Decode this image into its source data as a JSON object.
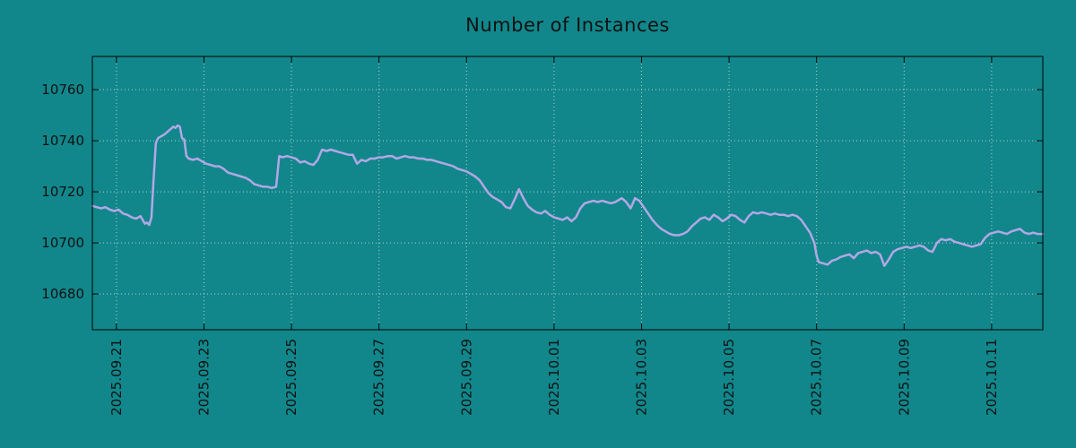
{
  "chart_data": {
    "type": "line",
    "title": "Number of Instances",
    "xlabel": "",
    "ylabel": "",
    "x_unit": "days since 2025-09-21",
    "xlim": [
      -0.55,
      21.17
    ],
    "ylim": [
      10666,
      10773
    ],
    "grid": true,
    "legend": "none",
    "y_ticks": [
      10680,
      10700,
      10720,
      10740,
      10760
    ],
    "x_tick_pos": [
      0,
      2,
      4,
      6,
      8,
      10,
      12,
      14,
      16,
      18,
      20
    ],
    "x_tick_labels": [
      "2025.09.21",
      "2025.09.23",
      "2025.09.25",
      "2025.09.27",
      "2025.09.29",
      "2025.10.01",
      "2025.10.03",
      "2025.10.05",
      "2025.10.07",
      "2025.10.09",
      "2025.10.11"
    ],
    "colors": {
      "background": "#11878b",
      "line": "#b3a7e6",
      "grid": "#d6dcdc",
      "text": "#111111",
      "border": "#000000"
    },
    "series": [
      {
        "name": "instances",
        "points": [
          [
            -0.55,
            10714.5
          ],
          [
            -0.45,
            10714
          ],
          [
            -0.35,
            10713.5
          ],
          [
            -0.25,
            10714
          ],
          [
            -0.15,
            10713
          ],
          [
            -0.05,
            10712.5
          ],
          [
            0.05,
            10713
          ],
          [
            0.15,
            10711.5
          ],
          [
            0.25,
            10711
          ],
          [
            0.35,
            10710
          ],
          [
            0.45,
            10709.5
          ],
          [
            0.55,
            10710.5
          ],
          [
            0.6,
            10709
          ],
          [
            0.65,
            10707.5
          ],
          [
            0.7,
            10708
          ],
          [
            0.75,
            10707
          ],
          [
            0.8,
            10710
          ],
          [
            0.85,
            10725
          ],
          [
            0.9,
            10739
          ],
          [
            0.95,
            10741
          ],
          [
            1.0,
            10741.5
          ],
          [
            1.1,
            10742.5
          ],
          [
            1.2,
            10744
          ],
          [
            1.3,
            10745.5
          ],
          [
            1.35,
            10745
          ],
          [
            1.4,
            10746
          ],
          [
            1.45,
            10745.5
          ],
          [
            1.5,
            10741
          ],
          [
            1.55,
            10740.5
          ],
          [
            1.6,
            10734
          ],
          [
            1.65,
            10733
          ],
          [
            1.75,
            10732.5
          ],
          [
            1.85,
            10733
          ],
          [
            1.95,
            10732
          ],
          [
            2.05,
            10731
          ],
          [
            2.15,
            10730.5
          ],
          [
            2.25,
            10730
          ],
          [
            2.35,
            10730
          ],
          [
            2.45,
            10729
          ],
          [
            2.55,
            10727.5
          ],
          [
            2.65,
            10727
          ],
          [
            2.75,
            10726.5
          ],
          [
            2.85,
            10726
          ],
          [
            2.95,
            10725.5
          ],
          [
            3.05,
            10724.5
          ],
          [
            3.15,
            10723
          ],
          [
            3.25,
            10722.5
          ],
          [
            3.35,
            10722
          ],
          [
            3.45,
            10722
          ],
          [
            3.55,
            10721.5
          ],
          [
            3.65,
            10722
          ],
          [
            3.72,
            10734
          ],
          [
            3.8,
            10733.5
          ],
          [
            3.9,
            10734
          ],
          [
            4.0,
            10733.5
          ],
          [
            4.1,
            10733
          ],
          [
            4.2,
            10731.5
          ],
          [
            4.3,
            10732
          ],
          [
            4.4,
            10731
          ],
          [
            4.5,
            10730.5
          ],
          [
            4.6,
            10732.5
          ],
          [
            4.7,
            10736.5
          ],
          [
            4.8,
            10736
          ],
          [
            4.9,
            10736.5
          ],
          [
            5.0,
            10736
          ],
          [
            5.1,
            10735.5
          ],
          [
            5.2,
            10735
          ],
          [
            5.3,
            10734.5
          ],
          [
            5.4,
            10734.5
          ],
          [
            5.5,
            10731
          ],
          [
            5.6,
            10732.5
          ],
          [
            5.7,
            10732
          ],
          [
            5.8,
            10733
          ],
          [
            5.9,
            10733
          ],
          [
            6.0,
            10733.5
          ],
          [
            6.1,
            10733.5
          ],
          [
            6.2,
            10734
          ],
          [
            6.3,
            10734
          ],
          [
            6.4,
            10733
          ],
          [
            6.5,
            10733.5
          ],
          [
            6.6,
            10734
          ],
          [
            6.7,
            10733.5
          ],
          [
            6.8,
            10733.5
          ],
          [
            6.9,
            10733
          ],
          [
            7.0,
            10733
          ],
          [
            7.1,
            10732.5
          ],
          [
            7.2,
            10732.5
          ],
          [
            7.3,
            10732
          ],
          [
            7.4,
            10731.5
          ],
          [
            7.5,
            10731
          ],
          [
            7.6,
            10730.5
          ],
          [
            7.7,
            10730
          ],
          [
            7.8,
            10729
          ],
          [
            7.9,
            10728.5
          ],
          [
            8.0,
            10728
          ],
          [
            8.1,
            10727
          ],
          [
            8.2,
            10726
          ],
          [
            8.3,
            10724.5
          ],
          [
            8.4,
            10722
          ],
          [
            8.5,
            10719.5
          ],
          [
            8.6,
            10718
          ],
          [
            8.7,
            10717
          ],
          [
            8.8,
            10716
          ],
          [
            8.9,
            10714
          ],
          [
            9.0,
            10713.5
          ],
          [
            9.1,
            10717
          ],
          [
            9.2,
            10721
          ],
          [
            9.3,
            10717.5
          ],
          [
            9.4,
            10714.5
          ],
          [
            9.5,
            10713
          ],
          [
            9.6,
            10712
          ],
          [
            9.7,
            10711.5
          ],
          [
            9.8,
            10712.5
          ],
          [
            9.9,
            10711
          ],
          [
            10.0,
            10710
          ],
          [
            10.1,
            10709.5
          ],
          [
            10.2,
            10709
          ],
          [
            10.3,
            10710
          ],
          [
            10.4,
            10708.5
          ],
          [
            10.5,
            10710
          ],
          [
            10.6,
            10713.5
          ],
          [
            10.7,
            10715.5
          ],
          [
            10.8,
            10716
          ],
          [
            10.9,
            10716.5
          ],
          [
            11.0,
            10716
          ],
          [
            11.1,
            10716.5
          ],
          [
            11.2,
            10716
          ],
          [
            11.3,
            10715.5
          ],
          [
            11.4,
            10716
          ],
          [
            11.5,
            10717
          ],
          [
            11.55,
            10717.5
          ],
          [
            11.65,
            10716
          ],
          [
            11.75,
            10713.5
          ],
          [
            11.85,
            10717.5
          ],
          [
            11.95,
            10716.5
          ],
          [
            12.05,
            10714
          ],
          [
            12.15,
            10711.5
          ],
          [
            12.25,
            10709
          ],
          [
            12.35,
            10707
          ],
          [
            12.45,
            10705.5
          ],
          [
            12.55,
            10704.5
          ],
          [
            12.65,
            10703.5
          ],
          [
            12.75,
            10703
          ],
          [
            12.85,
            10703
          ],
          [
            12.95,
            10703.5
          ],
          [
            13.05,
            10704.5
          ],
          [
            13.15,
            10706.5
          ],
          [
            13.25,
            10708
          ],
          [
            13.35,
            10709.5
          ],
          [
            13.45,
            10710
          ],
          [
            13.55,
            10709
          ],
          [
            13.65,
            10711
          ],
          [
            13.75,
            10710
          ],
          [
            13.85,
            10708.5
          ],
          [
            13.95,
            10709.5
          ],
          [
            14.05,
            10711
          ],
          [
            14.15,
            10710.5
          ],
          [
            14.25,
            10709
          ],
          [
            14.35,
            10708
          ],
          [
            14.45,
            10710.5
          ],
          [
            14.55,
            10712
          ],
          [
            14.65,
            10711.5
          ],
          [
            14.75,
            10712
          ],
          [
            14.85,
            10711.5
          ],
          [
            14.95,
            10711
          ],
          [
            15.05,
            10711.5
          ],
          [
            15.15,
            10711
          ],
          [
            15.25,
            10711
          ],
          [
            15.35,
            10710.5
          ],
          [
            15.45,
            10711
          ],
          [
            15.55,
            10710.5
          ],
          [
            15.65,
            10709
          ],
          [
            15.75,
            10706.5
          ],
          [
            15.85,
            10704
          ],
          [
            15.95,
            10700
          ],
          [
            16.0,
            10695
          ],
          [
            16.05,
            10692.5
          ],
          [
            16.15,
            10692
          ],
          [
            16.25,
            10691.5
          ],
          [
            16.35,
            10693
          ],
          [
            16.45,
            10693.5
          ],
          [
            16.55,
            10694.5
          ],
          [
            16.65,
            10695
          ],
          [
            16.75,
            10695.5
          ],
          [
            16.85,
            10694
          ],
          [
            16.95,
            10696
          ],
          [
            17.05,
            10696.5
          ],
          [
            17.15,
            10697
          ],
          [
            17.25,
            10696
          ],
          [
            17.35,
            10696.5
          ],
          [
            17.45,
            10695.5
          ],
          [
            17.55,
            10691
          ],
          [
            17.65,
            10693.5
          ],
          [
            17.75,
            10696.5
          ],
          [
            17.85,
            10697.5
          ],
          [
            17.95,
            10698
          ],
          [
            18.05,
            10698.5
          ],
          [
            18.15,
            10698
          ],
          [
            18.25,
            10698.5
          ],
          [
            18.35,
            10699
          ],
          [
            18.45,
            10698.5
          ],
          [
            18.55,
            10697
          ],
          [
            18.65,
            10696.5
          ],
          [
            18.75,
            10700
          ],
          [
            18.85,
            10701.5
          ],
          [
            18.95,
            10701
          ],
          [
            19.05,
            10701.5
          ],
          [
            19.15,
            10700.5
          ],
          [
            19.25,
            10700
          ],
          [
            19.35,
            10699.5
          ],
          [
            19.45,
            10699
          ],
          [
            19.55,
            10698.5
          ],
          [
            19.65,
            10699
          ],
          [
            19.75,
            10699.5
          ],
          [
            19.85,
            10702
          ],
          [
            19.95,
            10703.5
          ],
          [
            20.05,
            10704
          ],
          [
            20.15,
            10704.5
          ],
          [
            20.25,
            10704
          ],
          [
            20.35,
            10703.5
          ],
          [
            20.45,
            10704.5
          ],
          [
            20.55,
            10705
          ],
          [
            20.65,
            10705.5
          ],
          [
            20.75,
            10704
          ],
          [
            20.85,
            10703.5
          ],
          [
            20.95,
            10704
          ],
          [
            21.05,
            10703.5
          ],
          [
            21.17,
            10703.5
          ]
        ]
      }
    ]
  }
}
